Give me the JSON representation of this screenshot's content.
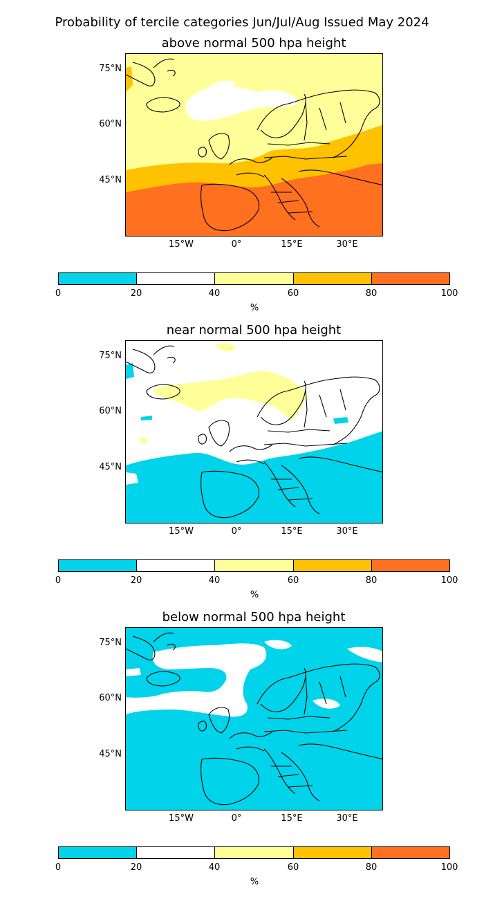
{
  "title": "Probability of tercile categories Jun/Jul/Aug Issued May 2024",
  "colors": {
    "c0_20": "#00d3ea",
    "c20_40": "#ffffff",
    "c40_60": "#ffff99",
    "c60_80": "#ffc200",
    "c80_100": "#ff7020",
    "coast": "#000000"
  },
  "axes": {
    "lat_ticks": [
      "75°N",
      "60°N",
      "45°N"
    ],
    "lon_ticks": [
      "15°W",
      "0°",
      "15°E",
      "30°E"
    ]
  },
  "colorbar": {
    "ticks": [
      "0",
      "20",
      "40",
      "60",
      "80",
      "100"
    ],
    "unit": "%"
  },
  "panels": [
    {
      "id": "above",
      "title": "above normal 500 hpa height"
    },
    {
      "id": "near",
      "title": "near normal 500 hpa height"
    },
    {
      "id": "below",
      "title": "below normal 500 hpa height"
    }
  ]
}
